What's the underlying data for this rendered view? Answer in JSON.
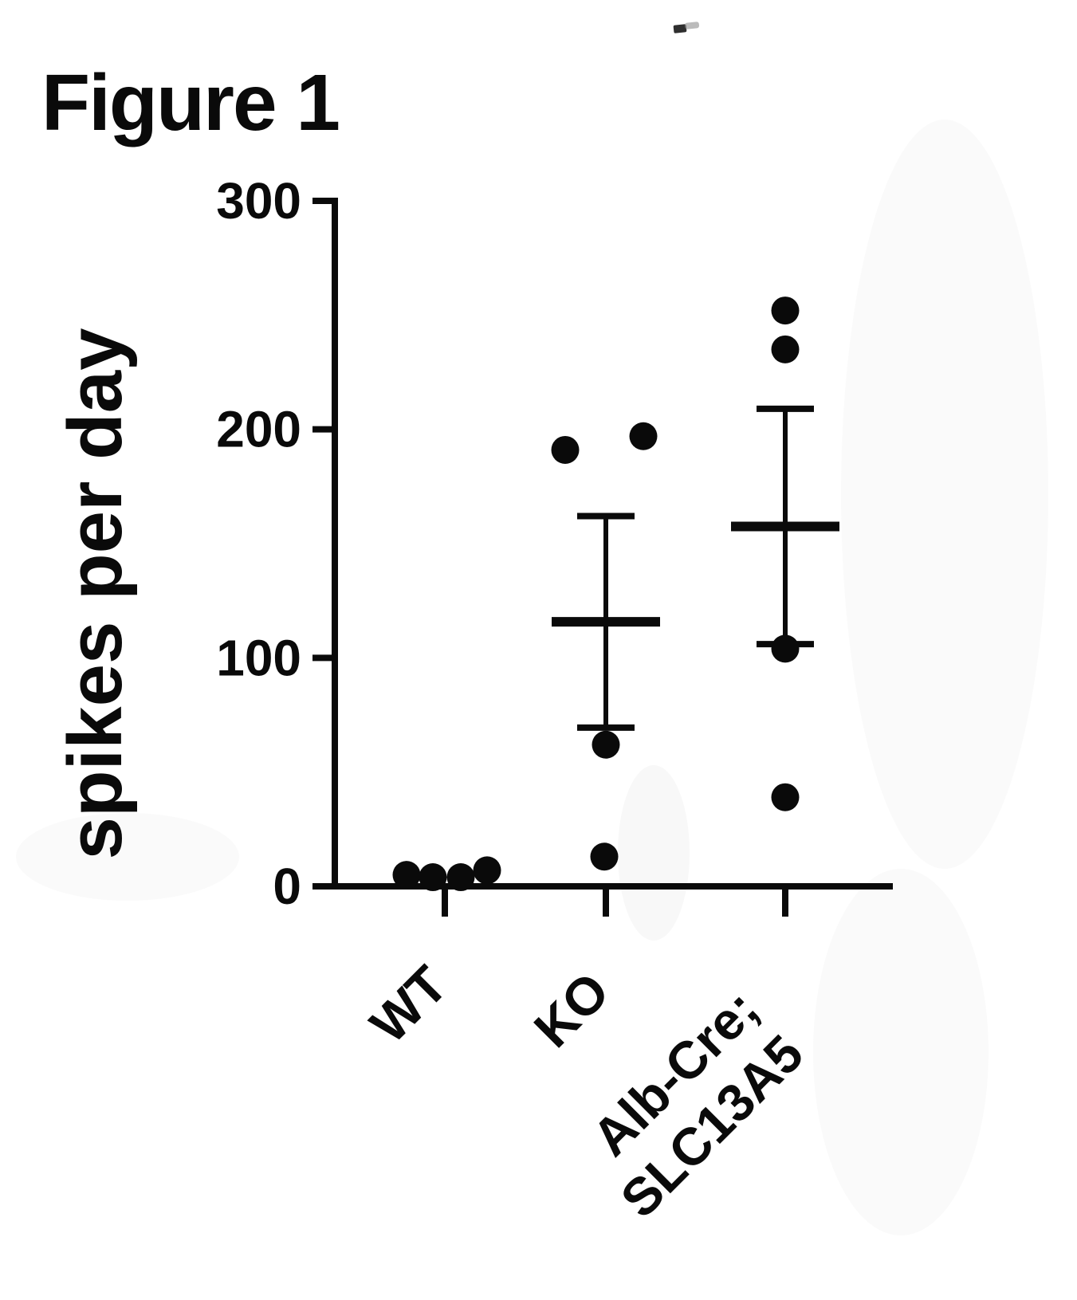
{
  "figure": {
    "heading": "Figure 1"
  },
  "chart_data": {
    "type": "scatter",
    "title": "Figure 1",
    "subtitle": "",
    "xlabel": "",
    "ylabel": "spikes per day",
    "ylim": [
      0,
      300
    ],
    "yticks": [
      0,
      100,
      200,
      300
    ],
    "grid": false,
    "legend": "none",
    "marker": "filled-black-circle",
    "error_bar_style": "mean with SEM whiskers",
    "categories": [
      "WT",
      "KO",
      "Alb-Cre; SLC13A5"
    ],
    "groups": [
      {
        "label": "WT",
        "label_lines": [
          "WT"
        ],
        "values": [
          5,
          4,
          4,
          7
        ],
        "x_jitter": [
          -48,
          -15,
          20,
          53
        ],
        "mean": 5,
        "sem": 0.7,
        "show_error_bar": false
      },
      {
        "label": "KO",
        "label_lines": [
          "KO"
        ],
        "values": [
          191,
          197,
          62,
          13
        ],
        "x_jitter": [
          -51,
          47,
          0,
          -2
        ],
        "mean": 115.75,
        "sem": 46.3,
        "show_error_bar": true
      },
      {
        "label": "Alb-Cre; SLC13A5",
        "label_lines": [
          "Alb-Cre;",
          "SLC13A5"
        ],
        "values": [
          252,
          235,
          104,
          39
        ],
        "x_jitter": [
          0,
          0,
          0,
          0
        ],
        "mean": 157.5,
        "sem": 51.5,
        "show_error_bar": true
      }
    ]
  },
  "colors": {
    "ink": "#0a0a0a",
    "background": "#ffffff"
  }
}
